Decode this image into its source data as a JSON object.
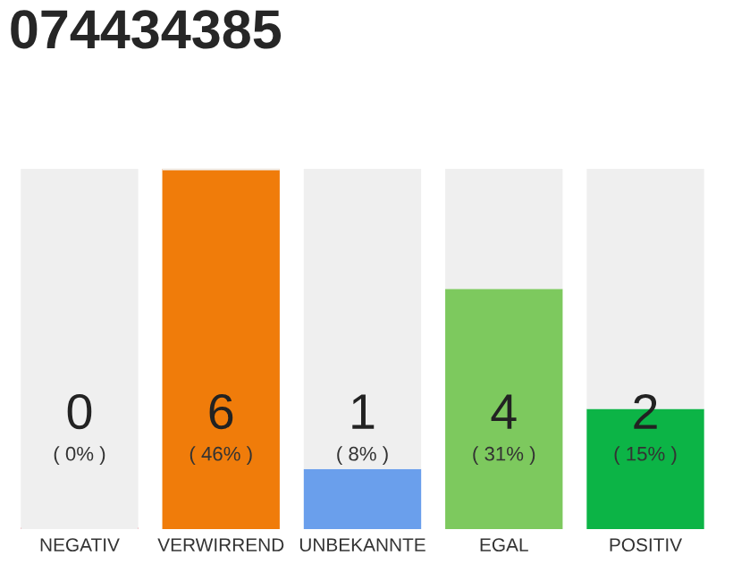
{
  "chart_data": {
    "type": "bar",
    "title": "074434385",
    "categories": [
      "NEGATIV",
      "VERWIRREND",
      "UNBEKANNTE",
      "EGAL",
      "POSITIV"
    ],
    "series": [
      {
        "colors": [
          "#e8283c",
          "#f07c0a",
          "#6a9fec",
          "#7dc95e",
          "#0cb446"
        ],
        "values": [
          0,
          6,
          1,
          4,
          2
        ],
        "value_labels": [
          "0\n( 0% )",
          "6\n( 46% )",
          "1\n( 8% )",
          "4\n( 31% )",
          "2\n( 15% )"
        ]
      },
      {
        "color": "#efefef",
        "values": [
          6,
          0,
          5,
          2,
          4
        ]
      }
    ],
    "stacked": true,
    "grid": false,
    "legend": false
  }
}
